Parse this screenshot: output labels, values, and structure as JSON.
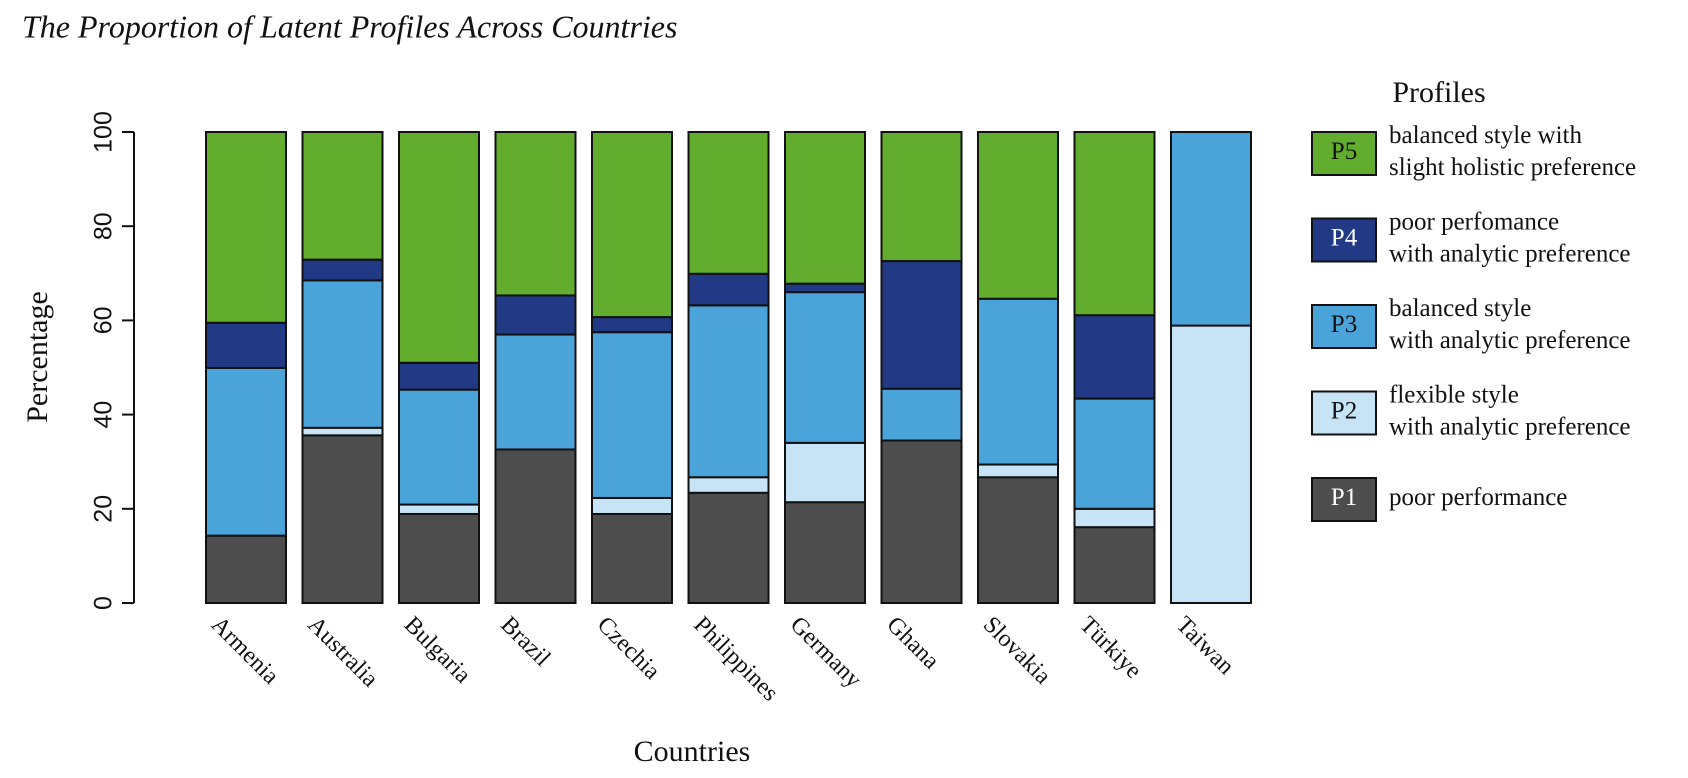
{
  "chart_data": {
    "type": "stacked_bar",
    "title": "The Proportion of Latent Profiles Across Countries",
    "x_label": "Countries",
    "y_label": "Percentage",
    "categories": [
      "Armenia",
      "Australia",
      "Bulgaria",
      "Brazil",
      "Czechia",
      "Philippines",
      "Germany",
      "Ghana",
      "Slovakia",
      "Türkiye",
      "Taiwan"
    ],
    "series": [
      {
        "name": "P1",
        "description": [
          "poor performance"
        ],
        "color": "#4d4d4d",
        "values": [
          14.3,
          35.6,
          18.9,
          32.6,
          18.9,
          23.4,
          21.4,
          34.5,
          26.7,
          16.1,
          0
        ]
      },
      {
        "name": "P2",
        "description": [
          "flexible style",
          "with analytic preference"
        ],
        "color": "#c6e4f5",
        "values": [
          0,
          1.6,
          2.0,
          0,
          3.4,
          3.3,
          12.6,
          0,
          2.7,
          3.9,
          58.9
        ]
      },
      {
        "name": "P3",
        "description": [
          "balanced style",
          "with analytic preference"
        ],
        "color": "#4aa3d9",
        "values": [
          35.6,
          31.3,
          24.4,
          24.4,
          35.2,
          36.5,
          32.0,
          11.0,
          35.2,
          23.4,
          41.1
        ]
      },
      {
        "name": "P4",
        "description": [
          "poor perfomance",
          "with analytic preference"
        ],
        "color": "#223a86",
        "values": [
          9.6,
          4.4,
          5.7,
          8.3,
          3.2,
          6.7,
          1.8,
          27.1,
          0,
          17.7,
          0
        ]
      },
      {
        "name": "P5",
        "description": [
          "balanced style with",
          "slight holistic preference"
        ],
        "color": "#63ad2e",
        "values": [
          40.5,
          27.1,
          49.0,
          34.7,
          39.3,
          30.1,
          32.2,
          27.4,
          35.4,
          38.9,
          0
        ]
      }
    ],
    "legend_title": "Profiles",
    "ylim": [
      0,
      100
    ],
    "yticks": [
      0,
      20,
      40,
      60,
      80,
      100
    ]
  }
}
